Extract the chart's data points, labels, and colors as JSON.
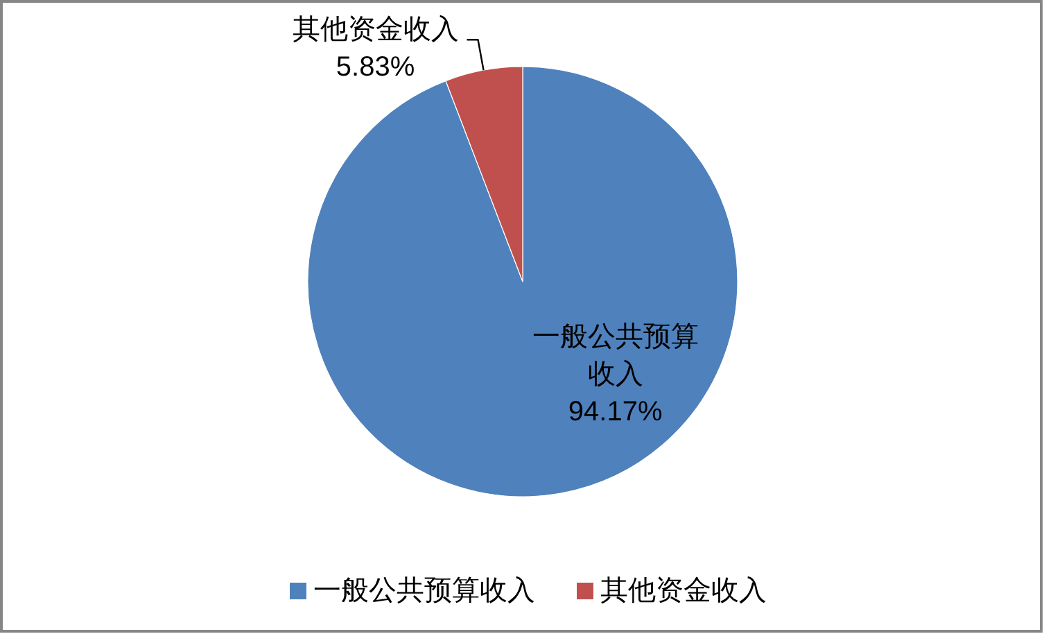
{
  "chart_data": {
    "type": "pie",
    "categories": [
      "一般公共预算收入",
      "其他资金收入"
    ],
    "values": [
      94.17,
      5.83
    ],
    "colors": [
      "#4f81bd",
      "#c0504d"
    ],
    "value_labels": [
      "94.17%",
      "5.83%"
    ],
    "legend": "bottom"
  }
}
